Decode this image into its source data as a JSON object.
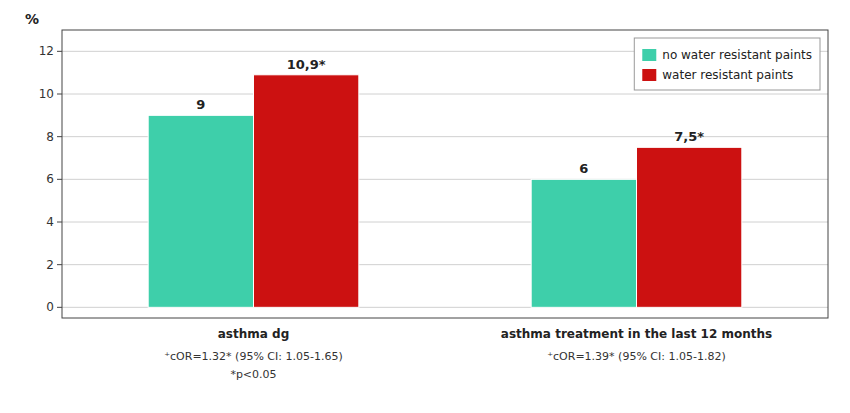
{
  "chart_data": {
    "type": "bar",
    "y_label": "%",
    "categories": [
      "asthma dg",
      "asthma treatment in the last 12 months"
    ],
    "series": [
      {
        "name": "no water resistant paints",
        "color": "#3ecfaa",
        "values": [
          9,
          6
        ]
      },
      {
        "name": "water resistant paints",
        "color": "#cc1111",
        "values": [
          10.9,
          7.5
        ],
        "value_labels": [
          "10,9*",
          "7,5*"
        ]
      }
    ],
    "annotations": [
      [
        "⁺cOR=1.32* (95% CI: 1.05-1.65)",
        "*p<0.05"
      ],
      [
        "⁺cOR=1.39* (95% CI: 1.05-1.82)"
      ]
    ],
    "ylim": [
      -0.5,
      13
    ],
    "yticks": [
      0,
      2,
      4,
      6,
      8,
      10,
      12
    ],
    "grid": true,
    "legend": "upper right",
    "data_labels": true
  }
}
